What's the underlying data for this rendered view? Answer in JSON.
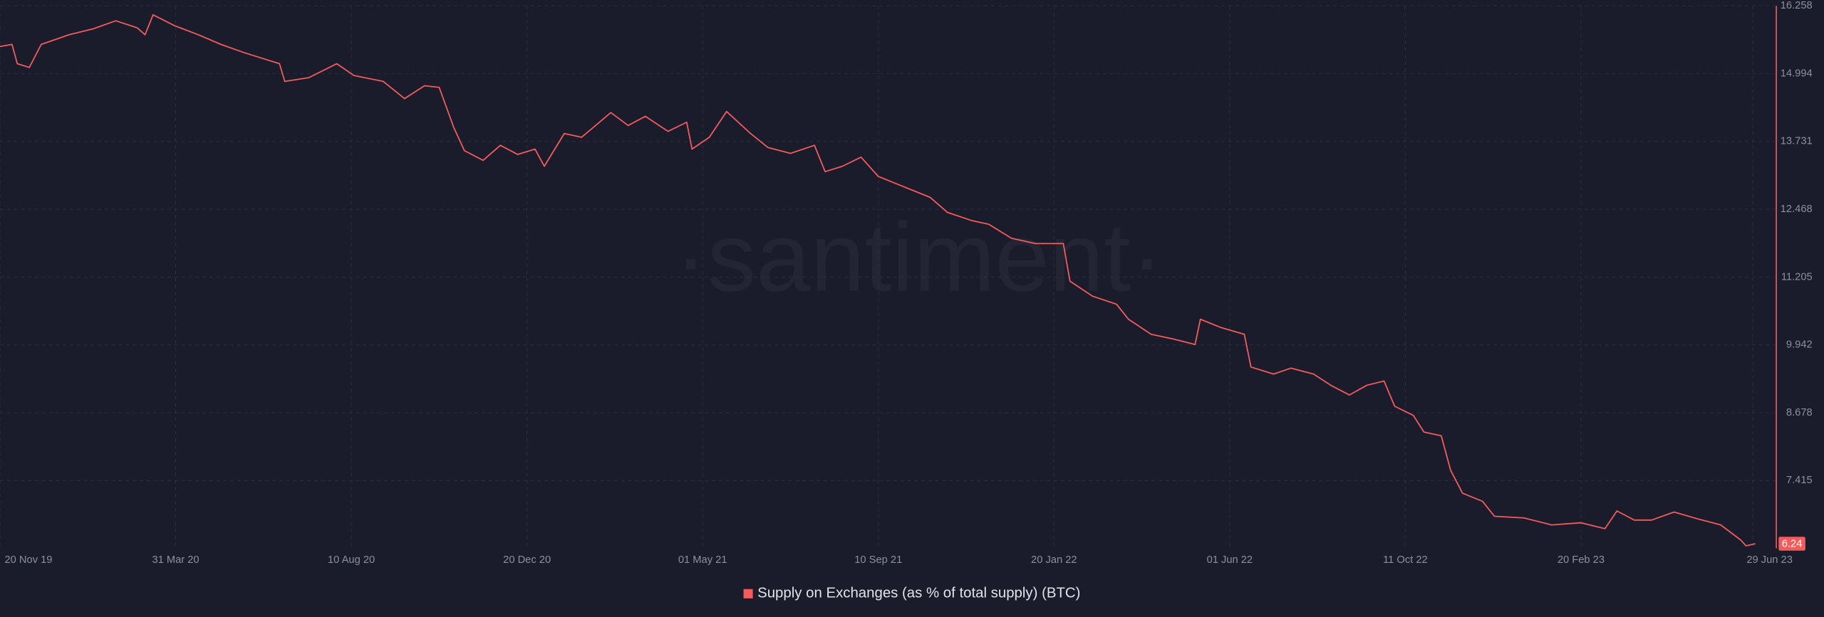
{
  "chart_data": {
    "type": "line",
    "watermark": "·santiment·",
    "x": [
      "2019-11-20",
      "2019-11-29",
      "2019-12-03",
      "2019-12-12",
      "2019-12-21",
      "2020-01-11",
      "2020-01-29",
      "2020-02-15",
      "2020-03-02",
      "2020-03-08",
      "2020-03-14",
      "2020-03-30",
      "2020-04-17",
      "2020-05-04",
      "2020-05-21",
      "2020-06-17",
      "2020-06-21",
      "2020-07-09",
      "2020-07-30",
      "2020-08-12",
      "2020-09-03",
      "2020-09-19",
      "2020-10-04",
      "2020-10-15",
      "2020-10-26",
      "2020-11-03",
      "2020-11-17",
      "2020-11-30",
      "2020-12-13",
      "2020-12-26",
      "2021-01-02",
      "2021-01-17",
      "2021-01-30",
      "2021-02-21",
      "2021-03-06",
      "2021-03-19",
      "2021-04-05",
      "2021-04-19",
      "2021-04-23",
      "2021-05-06",
      "2021-05-19",
      "2021-06-06",
      "2021-06-19",
      "2021-07-06",
      "2021-07-24",
      "2021-08-01",
      "2021-08-14",
      "2021-08-28",
      "2021-09-10",
      "2021-09-27",
      "2021-10-19",
      "2021-11-01",
      "2021-11-19",
      "2021-12-02",
      "2021-12-19",
      "2022-01-06",
      "2022-01-27",
      "2022-02-01",
      "2022-02-18",
      "2022-03-08",
      "2022-03-17",
      "2022-04-03",
      "2022-04-20",
      "2022-05-06",
      "2022-05-10",
      "2022-05-25",
      "2022-06-12",
      "2022-06-17",
      "2022-07-04",
      "2022-07-17",
      "2022-08-03",
      "2022-08-16",
      "2022-08-30",
      "2022-09-12",
      "2022-09-25",
      "2022-10-03",
      "2022-10-17",
      "2022-10-25",
      "2022-11-07",
      "2022-11-14",
      "2022-11-23",
      "2022-12-08",
      "2022-12-17",
      "2023-01-08",
      "2023-01-29",
      "2023-02-20",
      "2023-03-10",
      "2023-03-19",
      "2023-04-01",
      "2023-04-14",
      "2023-05-01",
      "2023-05-19",
      "2023-06-05",
      "2023-06-20",
      "2023-06-24",
      "2023-07-01"
    ],
    "series": [
      {
        "name": "Supply on Exchanges (as % of total supply) (BTC)",
        "color": "#f25c5c",
        "values": [
          15.5,
          15.54,
          15.18,
          15.11,
          15.54,
          15.72,
          15.83,
          15.98,
          15.85,
          15.72,
          16.09,
          15.89,
          15.72,
          15.54,
          15.39,
          15.18,
          14.85,
          14.92,
          15.18,
          14.96,
          14.85,
          14.53,
          14.77,
          14.74,
          13.99,
          13.56,
          13.38,
          13.66,
          13.49,
          13.59,
          13.27,
          13.88,
          13.81,
          14.27,
          14.03,
          14.2,
          13.92,
          14.09,
          13.59,
          13.81,
          14.29,
          13.88,
          13.62,
          13.51,
          13.66,
          13.17,
          13.27,
          13.44,
          13.08,
          12.91,
          12.69,
          12.41,
          12.26,
          12.19,
          11.93,
          11.83,
          11.83,
          11.13,
          10.85,
          10.7,
          10.42,
          10.14,
          10.05,
          9.95,
          10.42,
          10.27,
          10.14,
          9.53,
          9.4,
          9.51,
          9.4,
          9.19,
          9.01,
          9.19,
          9.27,
          8.8,
          8.63,
          8.32,
          8.25,
          7.61,
          7.18,
          7.03,
          6.75,
          6.72,
          6.59,
          6.63,
          6.52,
          6.85,
          6.68,
          6.68,
          6.83,
          6.7,
          6.59,
          6.31,
          6.2,
          6.24
        ]
      }
    ],
    "xlim": [
      "2019-11-20",
      "2023-07-22"
    ],
    "xticks": [
      {
        "value": "2019-11-20",
        "label": "20 Nov 19"
      },
      {
        "value": "2020-03-31",
        "label": "31 Mar 20"
      },
      {
        "value": "2020-08-10",
        "label": "10 Aug 20"
      },
      {
        "value": "2020-12-20",
        "label": "20 Dec 20"
      },
      {
        "value": "2021-05-01",
        "label": "01 May 21"
      },
      {
        "value": "2021-09-10",
        "label": "10 Sep 21"
      },
      {
        "value": "2022-01-20",
        "label": "20 Jan 22"
      },
      {
        "value": "2022-06-01",
        "label": "01 Jun 22"
      },
      {
        "value": "2022-10-11",
        "label": "11 Oct 22"
      },
      {
        "value": "2023-02-20",
        "label": "20 Feb 23"
      },
      {
        "value": "2023-06-29",
        "label": "29 Jun 23"
      }
    ],
    "ylim": [
      6.152,
      16.258
    ],
    "yticks": [
      7.415,
      8.678,
      9.942,
      11.205,
      12.468,
      13.731,
      14.994,
      16.258
    ],
    "grid": true
  }
}
